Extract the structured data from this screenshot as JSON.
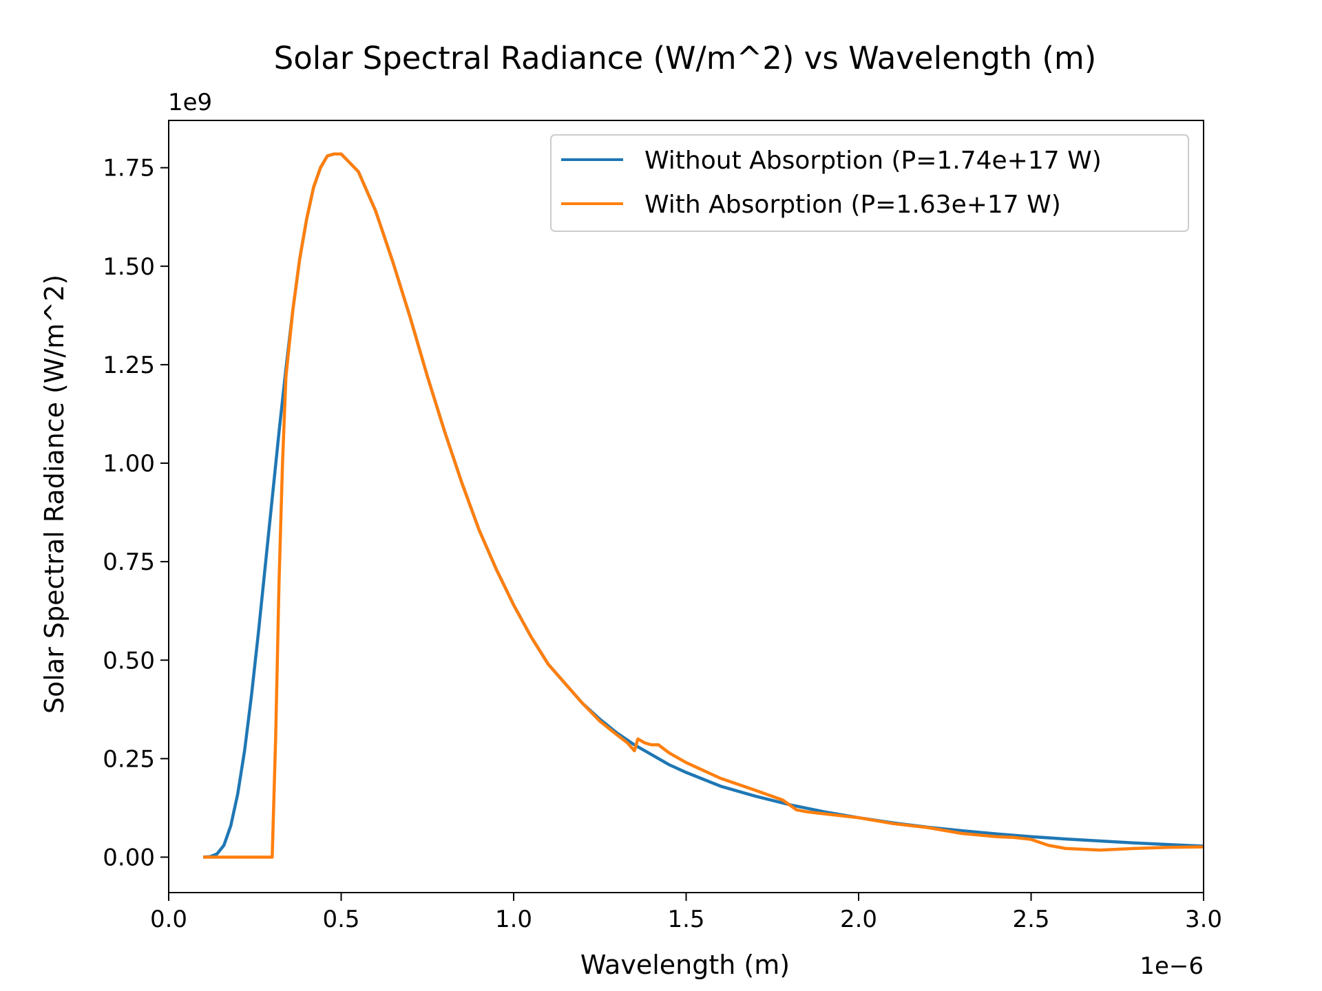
{
  "chart_data": {
    "type": "line",
    "title": "Solar Spectral Radiance (W/m^2) vs Wavelength (m)",
    "xlabel": "Wavelength (m)",
    "ylabel": "Solar Spectral Radiance (W/m^2)",
    "x_offset_text": "1e−6",
    "y_offset_text": "1e9",
    "x_unit_scale": 1e-06,
    "y_unit_scale": 1000000000.0,
    "xlim": [
      0.0,
      3.0
    ],
    "ylim": [
      -0.09,
      1.87
    ],
    "xticks": [
      "0.0",
      "0.5",
      "1.0",
      "1.5",
      "2.0",
      "2.5",
      "3.0"
    ],
    "xtick_values": [
      0.0,
      0.5,
      1.0,
      1.5,
      2.0,
      2.5,
      3.0
    ],
    "yticks": [
      "0.00",
      "0.25",
      "0.50",
      "0.75",
      "1.00",
      "1.25",
      "1.50",
      "1.75"
    ],
    "ytick_values": [
      0.0,
      0.25,
      0.5,
      0.75,
      1.0,
      1.25,
      1.5,
      1.75
    ],
    "grid": false,
    "legend_position": "top-right",
    "series": [
      {
        "name": "Without Absorption (P=1.74e+17 W)",
        "color": "#1f77b4",
        "x": [
          0.1,
          0.12,
          0.14,
          0.16,
          0.18,
          0.2,
          0.22,
          0.24,
          0.26,
          0.28,
          0.3,
          0.32,
          0.34,
          0.36,
          0.38,
          0.4,
          0.42,
          0.44,
          0.46,
          0.48,
          0.5,
          0.55,
          0.6,
          0.65,
          0.7,
          0.75,
          0.8,
          0.85,
          0.9,
          0.95,
          1.0,
          1.05,
          1.1,
          1.15,
          1.2,
          1.25,
          1.3,
          1.35,
          1.4,
          1.45,
          1.5,
          1.6,
          1.7,
          1.8,
          1.9,
          2.0,
          2.1,
          2.2,
          2.3,
          2.4,
          2.5,
          2.6,
          2.7,
          2.8,
          2.9,
          3.0
        ],
        "y": [
          0.0,
          0.001,
          0.008,
          0.03,
          0.08,
          0.16,
          0.27,
          0.41,
          0.57,
          0.74,
          0.91,
          1.08,
          1.24,
          1.39,
          1.52,
          1.62,
          1.7,
          1.75,
          1.78,
          1.785,
          1.785,
          1.74,
          1.64,
          1.51,
          1.37,
          1.22,
          1.08,
          0.95,
          0.83,
          0.73,
          0.64,
          0.56,
          0.49,
          0.44,
          0.39,
          0.35,
          0.315,
          0.285,
          0.26,
          0.235,
          0.215,
          0.18,
          0.155,
          0.133,
          0.115,
          0.1,
          0.087,
          0.076,
          0.067,
          0.059,
          0.052,
          0.046,
          0.041,
          0.036,
          0.032,
          0.028
        ]
      },
      {
        "name": "With Absorption (P=1.63e+17 W)",
        "color": "#ff7f0e",
        "x": [
          0.1,
          0.2,
          0.29,
          0.3,
          0.31,
          0.32,
          0.33,
          0.34,
          0.36,
          0.38,
          0.4,
          0.42,
          0.44,
          0.46,
          0.48,
          0.5,
          0.55,
          0.6,
          0.65,
          0.7,
          0.75,
          0.8,
          0.85,
          0.9,
          0.95,
          1.0,
          1.05,
          1.1,
          1.15,
          1.2,
          1.25,
          1.3,
          1.33,
          1.35,
          1.36,
          1.38,
          1.4,
          1.42,
          1.45,
          1.5,
          1.6,
          1.7,
          1.78,
          1.82,
          1.85,
          1.9,
          1.95,
          2.0,
          2.1,
          2.2,
          2.3,
          2.4,
          2.45,
          2.5,
          2.55,
          2.6,
          2.7,
          2.8,
          2.9,
          3.0
        ],
        "y": [
          0.0,
          0.0,
          0.0,
          0.0,
          0.3,
          0.7,
          1.0,
          1.22,
          1.39,
          1.52,
          1.62,
          1.7,
          1.75,
          1.78,
          1.785,
          1.785,
          1.74,
          1.64,
          1.51,
          1.37,
          1.22,
          1.08,
          0.95,
          0.83,
          0.73,
          0.64,
          0.56,
          0.49,
          0.44,
          0.39,
          0.345,
          0.31,
          0.29,
          0.27,
          0.3,
          0.29,
          0.285,
          0.285,
          0.265,
          0.24,
          0.2,
          0.17,
          0.145,
          0.12,
          0.115,
          0.11,
          0.105,
          0.1,
          0.085,
          0.075,
          0.06,
          0.052,
          0.05,
          0.045,
          0.03,
          0.022,
          0.018,
          0.022,
          0.025,
          0.026
        ]
      }
    ]
  }
}
